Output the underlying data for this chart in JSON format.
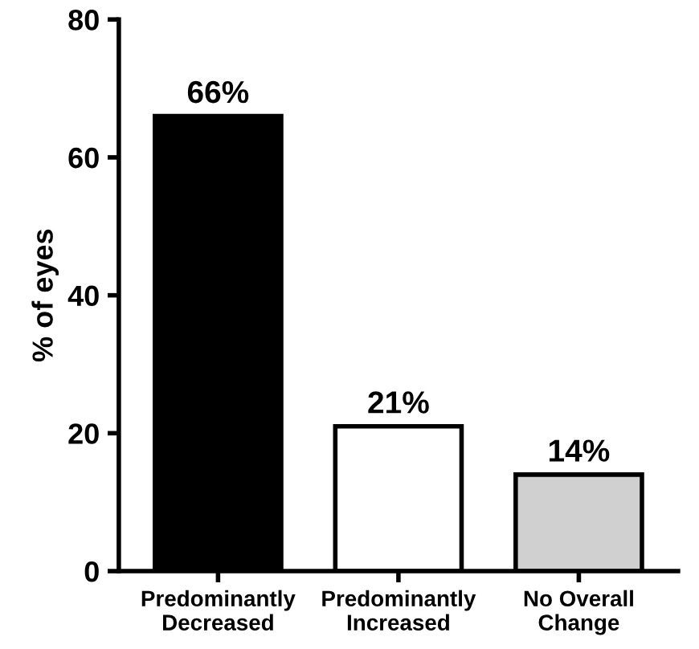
{
  "chart_data": {
    "type": "bar",
    "ylabel": "% of eyes",
    "categories": [
      "Predominantly\nDecreased",
      "Predominantly\nIncreased",
      "No Overall\nChange"
    ],
    "values": [
      66,
      21,
      14
    ],
    "colors": [
      "#000000",
      "#ffffff",
      "#d0d0d0"
    ],
    "value_labels": [
      "66%",
      "21%",
      "14%"
    ],
    "ylim": [
      0,
      80
    ],
    "yticks": [
      0,
      20,
      40,
      60,
      80
    ],
    "grid": false,
    "legend": false
  }
}
